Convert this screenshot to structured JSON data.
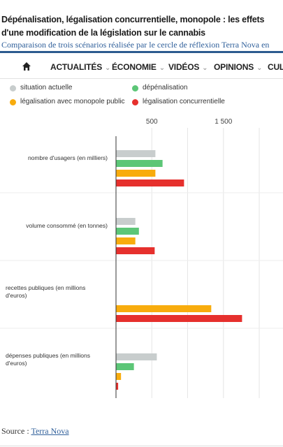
{
  "article": {
    "title": "Dépénalisation, légalisation concurrentielle, monopole : les effets d'une modification de la législation sur le cannabis",
    "subtitle": "Comparaison de trois scénarios réalisée par le cercle de réflexion Terra Nova en"
  },
  "nav": {
    "home_icon": "home-icon",
    "items": [
      {
        "label": "ACTUALITÉS",
        "has_dropdown": true
      },
      {
        "label": "ÉCONOMIE",
        "has_dropdown": true
      },
      {
        "label": "VIDÉOS",
        "has_dropdown": true
      },
      {
        "label": "OPINIONS",
        "has_dropdown": true
      },
      {
        "label": "CULT",
        "has_dropdown": false
      }
    ]
  },
  "chart_data": {
    "type": "bar",
    "orientation": "horizontal",
    "categories": [
      "nombre d'usagers (en milliers)",
      "volume consommé (en tonnes)",
      "recettes publiques (en millions d'euros)",
      "dépenses publiques (en millions d'euros)"
    ],
    "series": [
      {
        "name": "situation actuelle",
        "color": "#c8cdcd",
        "values": [
          550,
          270,
          0,
          570
        ]
      },
      {
        "name": "dépénalisation",
        "color": "#5cc677",
        "values": [
          650,
          320,
          0,
          250
        ]
      },
      {
        "name": "légalisation avec monopole public",
        "color": "#f8ac0d",
        "values": [
          550,
          270,
          1330,
          70
        ]
      },
      {
        "name": "légalisation concurrentielle",
        "color": "#e6302d",
        "values": [
          950,
          540,
          1760,
          30
        ]
      }
    ],
    "xticks": [
      500,
      1500
    ],
    "xtick_labels": [
      "500",
      "1 500"
    ],
    "xlim": [
      0,
      2000
    ],
    "grid": true,
    "legend": "top"
  },
  "source": {
    "prefix": "Source : ",
    "link_text": "Terra Nova"
  }
}
